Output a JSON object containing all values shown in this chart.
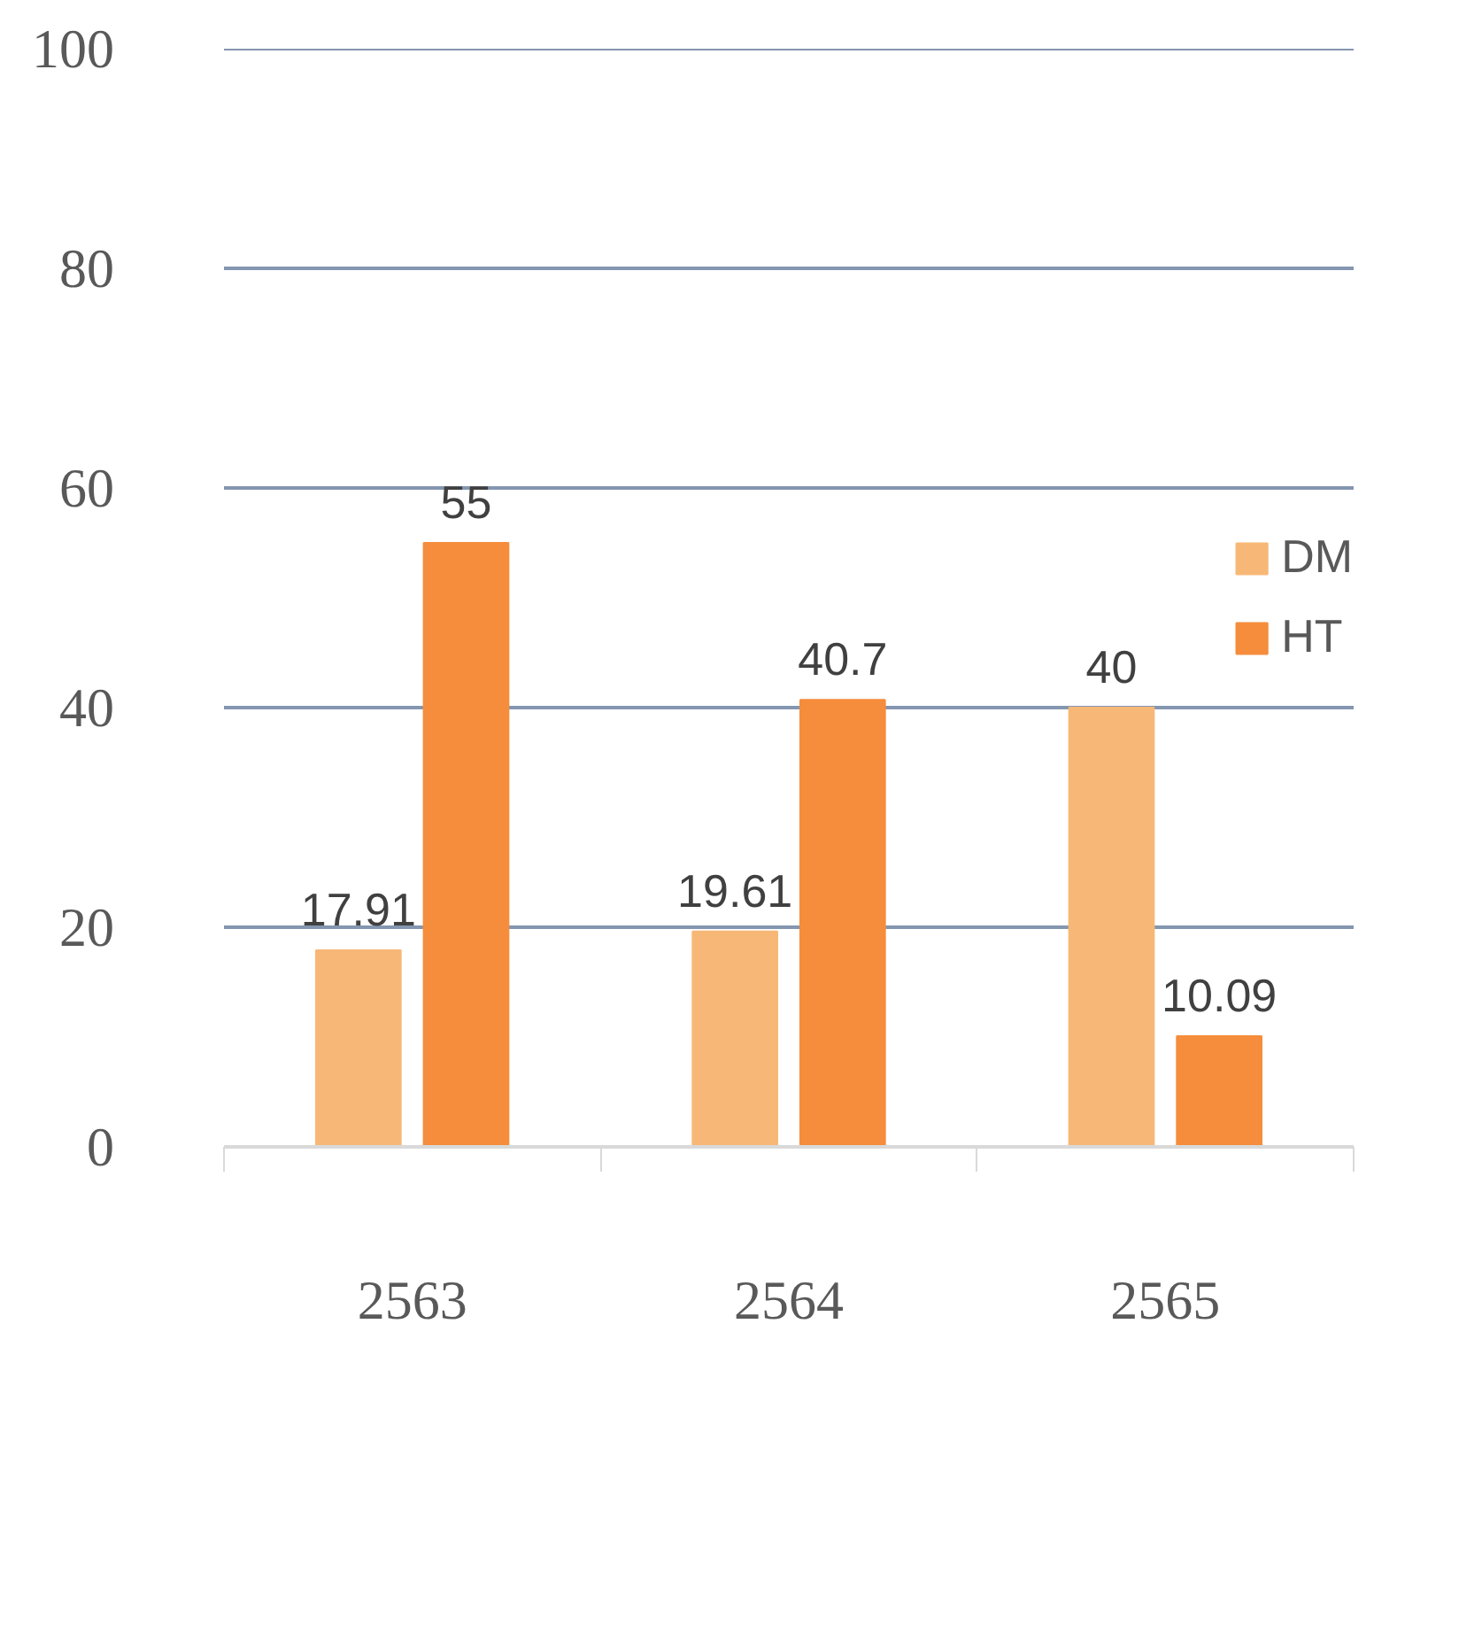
{
  "chart_data": {
    "type": "bar",
    "categories": [
      "2563",
      "2564",
      "2565"
    ],
    "series": [
      {
        "name": "DM",
        "color": "#f7b877",
        "values": [
          17.91,
          19.61,
          40
        ]
      },
      {
        "name": "HT",
        "color": "#f58d3c",
        "values": [
          55,
          40.7,
          10.09
        ]
      }
    ],
    "ylim": [
      0,
      100
    ],
    "yticks": [
      0,
      20,
      40,
      60,
      80,
      100
    ],
    "grid": "y",
    "legend": "right",
    "data_labels": true
  }
}
